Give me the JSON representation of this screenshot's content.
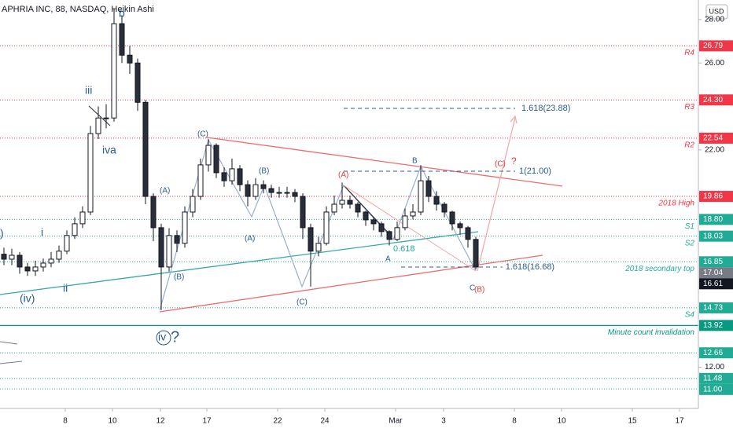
{
  "chart_data": {
    "type": "candlestick",
    "title": "APHRIA INC, 88, NASDAQ, Heikin Ashi",
    "currency": "USD",
    "up_color": "#ffffff",
    "down_color": "#2a2e39",
    "outline_color": "#131722",
    "x": [
      0.5,
      1.5,
      2.5,
      3.5,
      4.5,
      5.5,
      6.5,
      7.5,
      8.5,
      9.5,
      10.5,
      11.5,
      12.5,
      13.5,
      14.5,
      15.5,
      16.5,
      17.5,
      18.5,
      19.5,
      20.5,
      21.5,
      22.5,
      23.5,
      24.5,
      25.5,
      26.5,
      27.5,
      28.5,
      29.5,
      30.5,
      31.5,
      32.5,
      33.5,
      34.5,
      35.5,
      36.5,
      37.5,
      38.5,
      39.5,
      40.5,
      41.5,
      42.5,
      43.5,
      44.5,
      45.5,
      46.5,
      47.5,
      48.5,
      49.5,
      50.5,
      51.5,
      52.5,
      53.5,
      54.5,
      55.5,
      56.5,
      57.5,
      58.5,
      59.5,
      60.5
    ],
    "open": [
      17.2,
      16.97,
      17.15,
      16.61,
      16.43,
      16.61,
      16.79,
      16.97,
      17.34,
      18.06,
      18.6,
      19.14,
      22.75,
      23.47,
      23.47,
      27.81,
      26.36,
      26.0,
      24.19,
      19.86,
      18.42,
      16.61,
      18.06,
      17.7,
      19.14,
      19.86,
      21.31,
      22.21,
      20.95,
      20.58,
      21.13,
      20.4,
      19.86,
      20.4,
      20.22,
      20.04,
      20.04,
      20.04,
      19.86,
      18.42,
      17.34,
      17.7,
      19.14,
      19.5,
      19.68,
      19.5,
      19.14,
      18.78,
      18.6,
      18.24,
      17.88,
      18.42,
      18.96,
      19.14,
      20.58,
      19.86,
      19.5,
      19.14,
      18.6,
      18.42,
      17.88
    ],
    "high": [
      17.5,
      17.45,
      17.3,
      16.8,
      16.9,
      17.0,
      17.3,
      17.6,
      18.3,
      18.9,
      19.4,
      23.1,
      24.0,
      24.1,
      28.5,
      28.2,
      26.8,
      26.2,
      24.3,
      20.0,
      18.6,
      18.4,
      18.3,
      19.4,
      20.2,
      21.6,
      22.5,
      22.3,
      21.2,
      21.6,
      21.3,
      20.6,
      20.7,
      20.6,
      20.4,
      20.3,
      20.3,
      20.2,
      20.0,
      18.6,
      18.0,
      19.4,
      19.9,
      20.5,
      19.9,
      19.6,
      19.2,
      18.9,
      18.7,
      18.3,
      18.7,
      19.3,
      19.5,
      21.3,
      20.8,
      20.1,
      19.6,
      19.2,
      18.7,
      18.5,
      18.0
    ],
    "low": [
      16.7,
      16.7,
      16.3,
      16.2,
      16.2,
      16.4,
      16.6,
      16.8,
      17.2,
      17.9,
      18.4,
      19.0,
      22.5,
      23.0,
      23.3,
      26.0,
      25.5,
      23.8,
      19.5,
      17.8,
      14.63,
      16.4,
      17.3,
      17.5,
      18.9,
      19.7,
      21.0,
      20.7,
      20.3,
      20.4,
      20.1,
      19.4,
      19.7,
      20.0,
      19.8,
      19.8,
      19.8,
      19.6,
      17.9,
      15.71,
      17.1,
      17.6,
      19.0,
      19.3,
      19.3,
      18.9,
      18.5,
      18.3,
      18.0,
      17.6,
      17.8,
      18.3,
      18.8,
      19.0,
      19.6,
      19.2,
      18.9,
      18.3,
      18.1,
      17.5,
      16.5
    ],
    "close": [
      16.97,
      17.15,
      16.61,
      16.43,
      16.61,
      16.79,
      16.97,
      17.34,
      18.06,
      18.6,
      19.14,
      22.75,
      23.47,
      23.47,
      27.81,
      26.36,
      26.0,
      24.19,
      19.86,
      18.42,
      16.61,
      18.06,
      17.7,
      19.14,
      19.86,
      21.31,
      22.21,
      20.95,
      20.58,
      21.13,
      20.4,
      19.86,
      20.4,
      20.22,
      20.04,
      20.04,
      20.04,
      19.86,
      18.42,
      17.34,
      17.7,
      19.14,
      19.5,
      19.68,
      19.5,
      19.14,
      18.78,
      18.6,
      18.24,
      17.88,
      18.42,
      18.96,
      19.14,
      20.58,
      19.86,
      19.5,
      19.14,
      18.6,
      18.42,
      17.88,
      16.61
    ],
    "xlim": [
      0,
      88.8
    ],
    "ylim": [
      10.1,
      28.9
    ],
    "xticks": [
      {
        "value": 8.3,
        "label": "8"
      },
      {
        "value": 14.3,
        "label": "10"
      },
      {
        "value": 20.4,
        "label": "12"
      },
      {
        "value": 26.3,
        "label": "17"
      },
      {
        "value": 35.3,
        "label": "22"
      },
      {
        "value": 41.3,
        "label": "24"
      },
      {
        "value": 50.3,
        "label": "Mar"
      },
      {
        "value": 56.4,
        "label": "3"
      },
      {
        "value": 65.4,
        "label": "8"
      },
      {
        "value": 71.4,
        "label": "10"
      },
      {
        "value": 80.4,
        "label": "15"
      },
      {
        "value": 86.4,
        "label": "17"
      }
    ],
    "yticks": [
      {
        "value": 28,
        "label": "28.00"
      },
      {
        "value": 26,
        "label": "26.00"
      },
      {
        "value": 22,
        "label": "22.00"
      },
      {
        "value": 12,
        "label": "12.00"
      }
    ],
    "levels": [
      {
        "value": 26.79,
        "label": "26.79",
        "name": "R4",
        "color": "#f23645",
        "line_style": "dotted"
      },
      {
        "value": 24.3,
        "label": "24.30",
        "name": "R3",
        "color": "#f23645",
        "line_style": "dotted"
      },
      {
        "value": 22.54,
        "label": "22.54",
        "name": "R2",
        "color": "#f23645",
        "line_style": "dotted"
      },
      {
        "value": 19.86,
        "label": "19.86",
        "name": "2018 High",
        "color": "#f23645",
        "line_style": "dotted"
      },
      {
        "value": 18.8,
        "label": "18.80",
        "name": "S1",
        "color": "#22ab94",
        "line_style": "dotted"
      },
      {
        "value": 18.03,
        "label": "18.03",
        "name": "S2",
        "color": "#22ab94",
        "line_style": "dotted"
      },
      {
        "value": 16.85,
        "label": "16.85",
        "name": "2018 secondary top",
        "color": "#22ab94",
        "line_style": "dotted"
      },
      {
        "value": 17.04,
        "label": "17.04",
        "color": "#787b86",
        "line_style": "none"
      },
      {
        "value": 16.61,
        "label": "16.61",
        "color": "#131722",
        "line_style": "none"
      },
      {
        "value": 14.73,
        "label": "14.73",
        "name": "S4",
        "color": "#22ab94",
        "line_style": "dotted"
      },
      {
        "value": 13.92,
        "label": "13.92",
        "name": "Minute count invalidation",
        "color": "#089981",
        "line_style": "solid"
      },
      {
        "value": 12.66,
        "label": "12.66",
        "color": "#22ab94",
        "line_style": "dotted"
      },
      {
        "value": 11.48,
        "label": "11.48",
        "color": "#22ab94",
        "line_style": "dotted"
      },
      {
        "value": 11.0,
        "label": "11.00",
        "color": "#22ab94",
        "line_style": "dotted"
      }
    ],
    "annotations": {
      "edge": ")",
      "i": "i",
      "ii": "ii",
      "iv_paren": "(iv)",
      "iii": "iii",
      "iv": "iv",
      "a": "a",
      "b": "b",
      "A1": "(A)",
      "B1": "(B)",
      "C1": "(C)",
      "A2": "(A)",
      "B2": "(B)",
      "C2": "(C)",
      "A3": "(A)",
      "B": "B",
      "A": "A",
      "fib618": "0.618",
      "C": "C",
      "B3": "(B)",
      "C3": "(C)",
      "q": "?",
      "iv_circ": "iv",
      "iv_q": "?",
      "t1": "1.618(23.88)",
      "t2": "1(21.00)",
      "t3": "- 1.618(16.68)"
    }
  }
}
